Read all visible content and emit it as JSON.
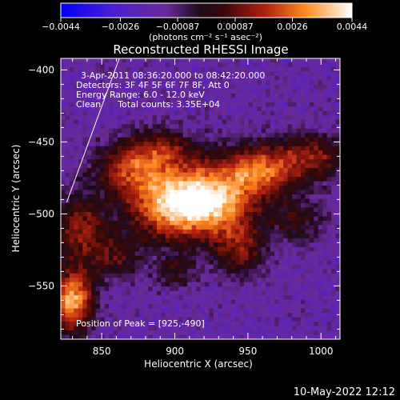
{
  "chart_data": {
    "type": "heatmap",
    "title": "Reconstructed RHESSI Image",
    "xlabel": "Heliocentric X (arcsec)",
    "ylabel": "Heliocentric Y (arcsec)",
    "xlim": [
      822,
      1013
    ],
    "ylim": [
      -587,
      -392
    ],
    "x_ticks": [
      850,
      900,
      950,
      1000
    ],
    "y_ticks": [
      -400,
      -450,
      -500,
      -550
    ],
    "x_tick_labels": [
      "850",
      "900",
      "950",
      "1000"
    ],
    "y_tick_labels": [
      "−400",
      "−450",
      "−500",
      "−550"
    ],
    "colorbar": {
      "range": [
        -0.0044,
        0.0044
      ],
      "tick_values": [
        -0.0044,
        -0.0026,
        -0.00087,
        0.00087,
        0.0026,
        0.0044
      ],
      "tick_labels": [
        "−0.0044",
        "−0.0026",
        "−0.00087",
        "0.00087",
        "0.0026",
        "0.0044"
      ],
      "units": "(photons cm⁻² s⁻¹ asec⁻²)",
      "colormap": [
        "#0000ff",
        "#5020c8",
        "#7a30a0",
        "#2a0a20",
        "#8a1a10",
        "#e04010",
        "#ffa020",
        "#ffffff"
      ]
    },
    "annotations": {
      "time": "3-Apr-2011 08:36:20.000 to 08:42:20.000",
      "detectors": "Detectors: 3F 4F 5F 6F 7F 8F, Att 0",
      "energy": "Energy Range: 6.0 - 12.0 keV",
      "clean": "Clean      Total counts: 3.35E+04",
      "peak": "Position of Peak = [925,-490]"
    },
    "peak": {
      "x": 925,
      "y": -490
    },
    "grid": false,
    "limb_line": [
      [
        826,
        -492
      ],
      [
        862,
        -392
      ]
    ]
  },
  "footer": {
    "timestamp": "10-May-2022 12:12"
  }
}
